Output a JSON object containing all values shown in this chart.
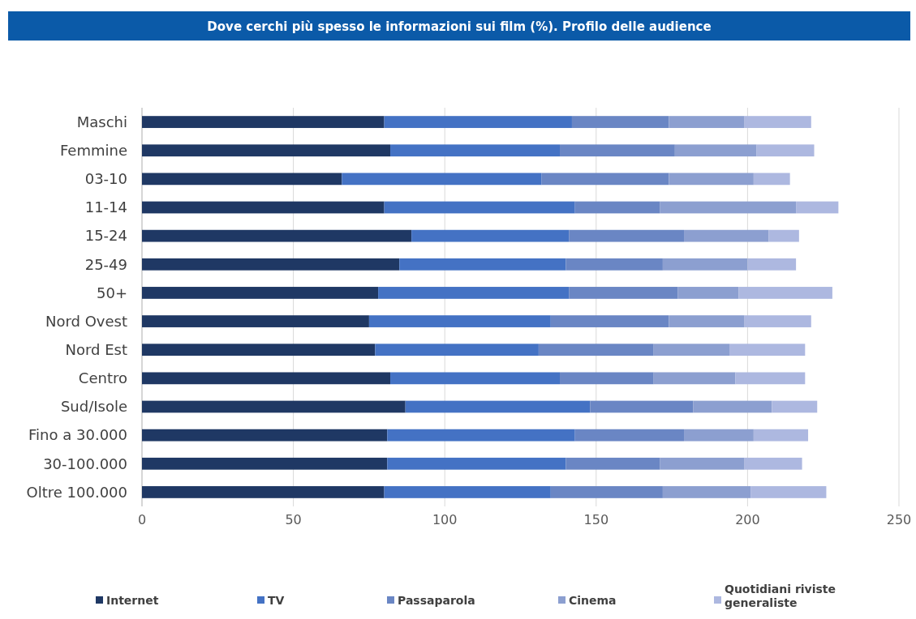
{
  "chart_data": {
    "type": "bar",
    "orientation": "horizontal",
    "stacked": true,
    "title": "Dove cerchi più spesso le informazioni sui film (%). Profilo delle audience",
    "categories": [
      "Maschi",
      "Femmine",
      "03-10",
      "11-14",
      "15-24",
      "25-49",
      "50+",
      "Nord Ovest",
      "Nord Est",
      "Centro",
      "Sud/Isole",
      "Fino a 30.000",
      "30-100.000",
      "Oltre 100.000"
    ],
    "series": [
      {
        "name": "Internet",
        "color": "#1f3864",
        "values": [
          80,
          82,
          66,
          80,
          89,
          85,
          78,
          75,
          77,
          82,
          87,
          81,
          81,
          80
        ]
      },
      {
        "name": "TV",
        "color": "#4472c4",
        "values": [
          62,
          56,
          66,
          63,
          52,
          55,
          63,
          60,
          54,
          56,
          61,
          62,
          59,
          55
        ]
      },
      {
        "name": "Passaparola",
        "color": "#6a86c4",
        "values": [
          32,
          38,
          42,
          28,
          38,
          32,
          36,
          39,
          38,
          31,
          34,
          36,
          31,
          37
        ]
      },
      {
        "name": "Cinema",
        "color": "#8c9fd0",
        "values": [
          25,
          27,
          28,
          45,
          28,
          28,
          20,
          25,
          25,
          27,
          26,
          23,
          28,
          29
        ]
      },
      {
        "name": "Quotidiani riviste generaliste",
        "color": "#adb8e0",
        "values": [
          22,
          19,
          12,
          14,
          10,
          16,
          31,
          22,
          25,
          23,
          15,
          18,
          19,
          25
        ]
      }
    ],
    "xlim": [
      0,
      250
    ],
    "xticks": [
      0,
      50,
      100,
      150,
      200,
      250
    ],
    "grid": "x",
    "legend": "bottom"
  }
}
